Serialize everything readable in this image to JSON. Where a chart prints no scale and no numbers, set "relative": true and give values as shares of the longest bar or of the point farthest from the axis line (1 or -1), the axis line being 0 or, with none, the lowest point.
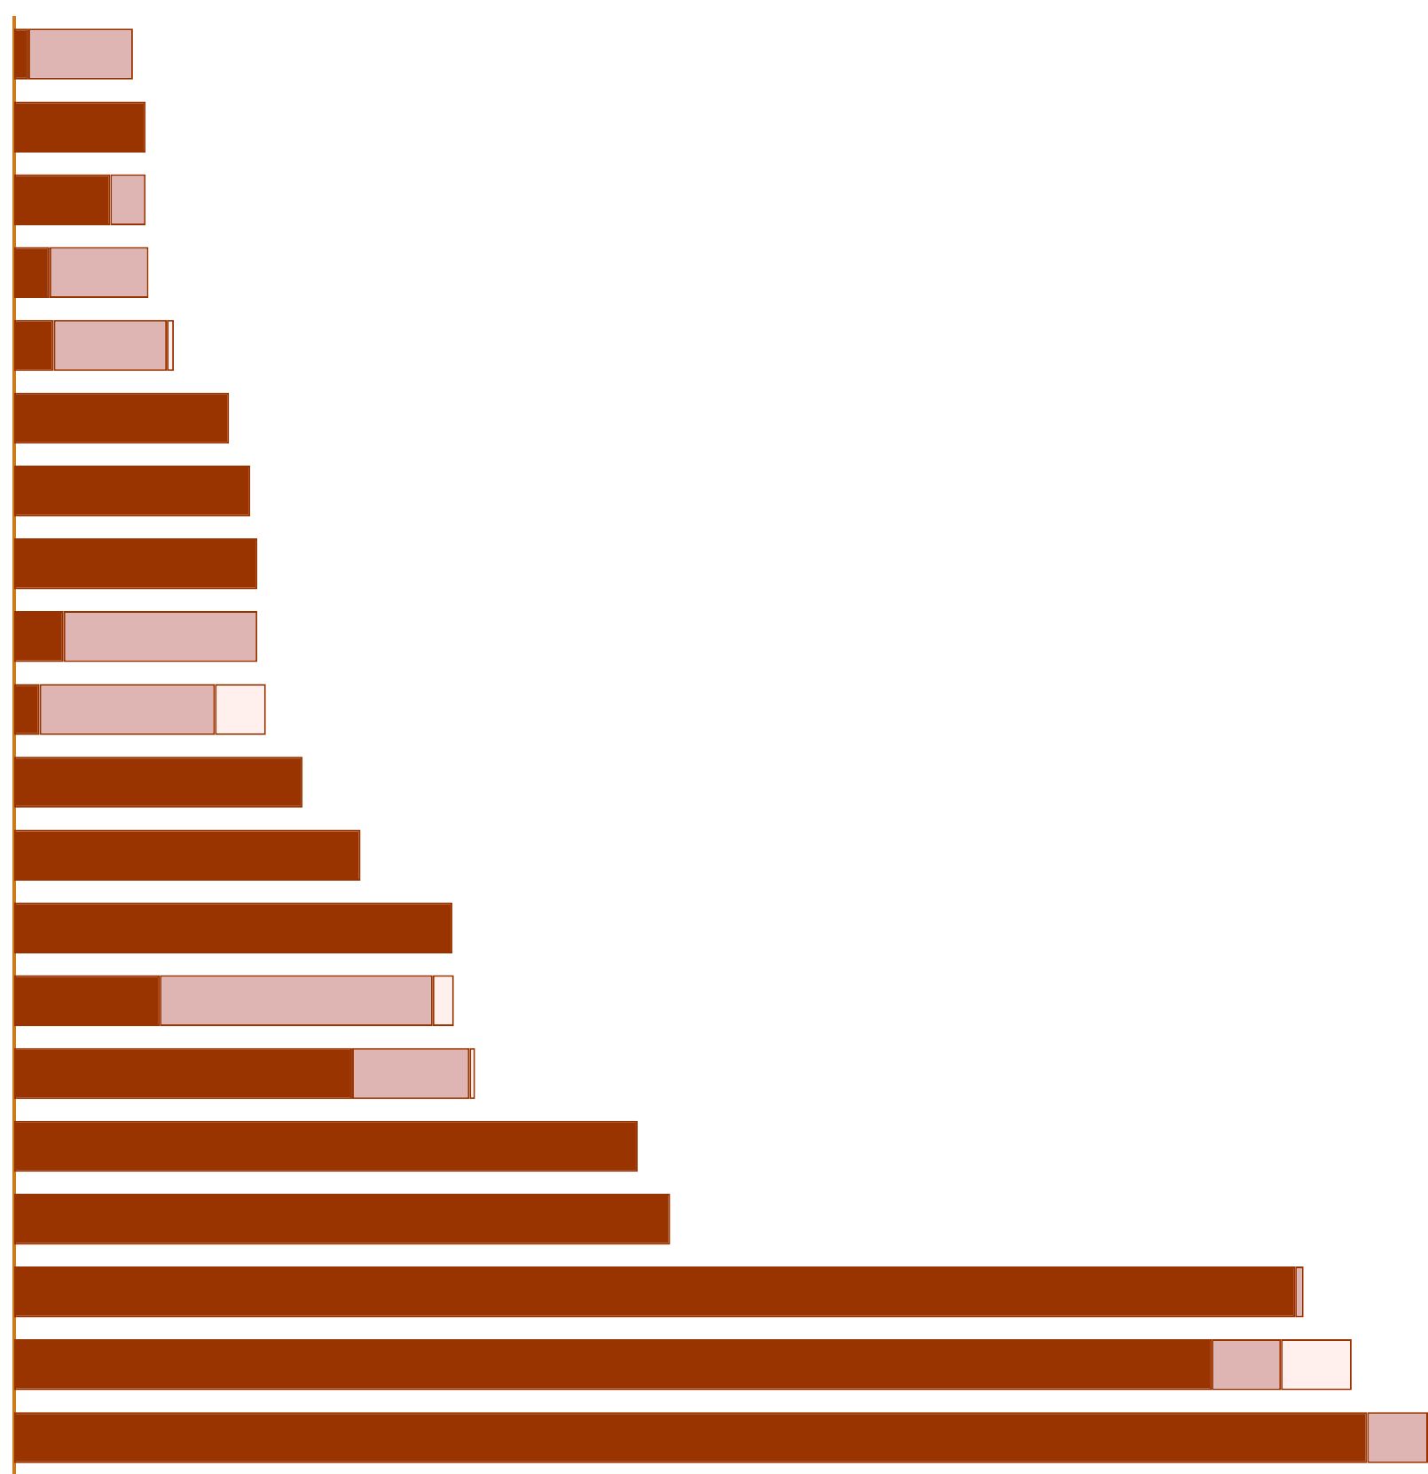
{
  "chart_data": {
    "type": "bar",
    "orientation": "horizontal",
    "stacked": true,
    "relative": true,
    "legend": false,
    "categories": [
      null,
      null,
      null,
      null,
      null,
      null,
      null,
      null,
      null,
      null,
      null,
      null,
      null,
      null,
      null,
      null,
      null,
      null,
      null,
      null
    ],
    "series": [
      {
        "color": "#993300",
        "values": [
          0.01,
          0.093,
          0.068,
          0.025,
          0.028,
          0.152,
          0.167,
          0.172,
          0.035,
          0.018,
          0.204,
          0.245,
          0.31,
          0.103,
          0.239,
          0.441,
          0.464,
          0.906,
          0.847,
          0.957
        ]
      },
      {
        "color": "#deb5b3",
        "values": [
          0.074,
          null,
          0.025,
          0.07,
          0.08,
          null,
          null,
          null,
          0.137,
          0.124,
          null,
          null,
          null,
          0.193,
          0.083,
          null,
          null,
          0.006,
          0.049,
          0.043
        ]
      },
      {
        "color": "#fff0ee",
        "values": [
          null,
          null,
          null,
          null,
          0.005,
          null,
          null,
          null,
          null,
          0.036,
          null,
          null,
          null,
          0.015,
          0.004,
          null,
          null,
          null,
          0.05,
          null
        ]
      }
    ]
  }
}
